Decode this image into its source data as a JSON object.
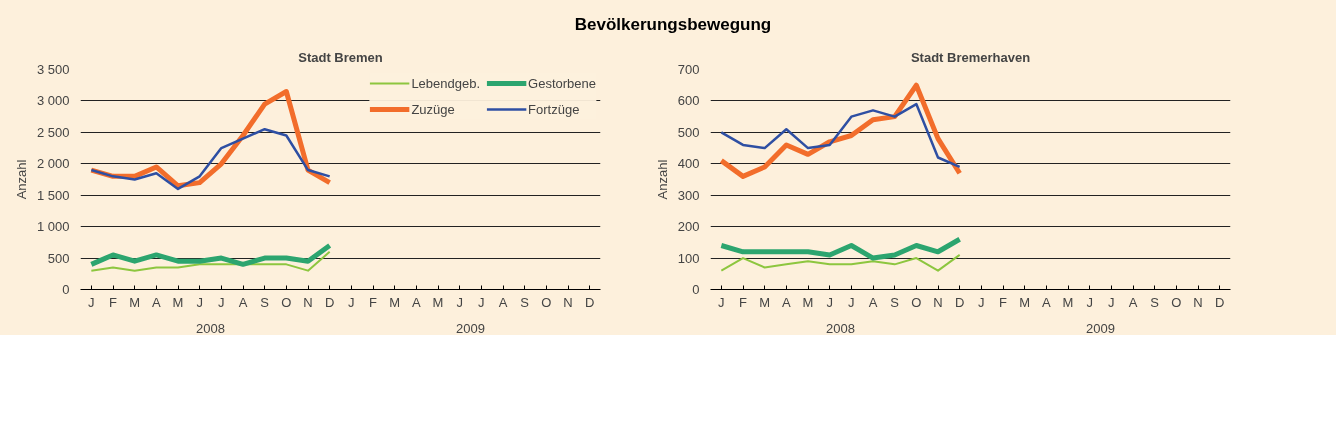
{
  "chart_data": [
    {
      "type": "line",
      "title": "Bevölkerungsbewegung",
      "subtitle": "Stadt Bremen",
      "ylabel": "Anzahl",
      "categories": [
        "J",
        "F",
        "M",
        "A",
        "M",
        "J",
        "J",
        "A",
        "S",
        "O",
        "N",
        "D",
        "J",
        "F",
        "M",
        "A",
        "M",
        "J",
        "J",
        "A",
        "S",
        "O",
        "N",
        "D"
      ],
      "annotations": [
        "2008",
        "2009"
      ],
      "ylim": [
        0,
        3500
      ],
      "yticks": [
        0,
        500,
        {
          "value": 1000,
          "label": "1 000"
        },
        {
          "value": 1500,
          "label": "1 500"
        },
        {
          "value": 2000,
          "label": "2 000"
        },
        {
          "value": 2500,
          "label": "2 500"
        },
        {
          "value": 3000,
          "label": "3 000"
        },
        {
          "value": 3500,
          "label": "3 500"
        }
      ],
      "grid": "y",
      "legend": "top right",
      "marker": "none",
      "series": [
        {
          "name": "Lebendgeb.",
          "color": "#8dc63f",
          "values": [
            300,
            350,
            300,
            350,
            350,
            400,
            400,
            400,
            400,
            400,
            300,
            600,
            null,
            null,
            null,
            null,
            null,
            null,
            null,
            null,
            null,
            null,
            null,
            null
          ]
        },
        {
          "name": "Gestorbene",
          "color": "#2ca56f",
          "values": [
            400,
            550,
            450,
            550,
            450,
            450,
            500,
            400,
            500,
            500,
            450,
            700,
            null,
            null,
            null,
            null,
            null,
            null,
            null,
            null,
            null,
            null,
            null,
            null
          ]
        },
        {
          "name": "Zuzüge",
          "color": "#f26d2b",
          "values": [
            1900,
            1800,
            1800,
            1950,
            1650,
            1700,
            2000,
            2450,
            2950,
            3150,
            1900,
            1700,
            null,
            null,
            null,
            null,
            null,
            null,
            null,
            null,
            null,
            null,
            null,
            null
          ]
        },
        {
          "name": "Fortzüge",
          "color": "#2e4fa3",
          "values": [
            1900,
            1800,
            1750,
            1850,
            1600,
            1800,
            2250,
            2400,
            2550,
            2450,
            1900,
            1800,
            null,
            null,
            null,
            null,
            null,
            null,
            null,
            null,
            null,
            null,
            null,
            null
          ]
        }
      ]
    },
    {
      "type": "line",
      "subtitle": "Stadt Bremerhaven",
      "ylabel": "Anzahl",
      "categories": [
        "J",
        "F",
        "M",
        "A",
        "M",
        "J",
        "J",
        "A",
        "S",
        "O",
        "N",
        "D",
        "J",
        "F",
        "M",
        "A",
        "M",
        "J",
        "J",
        "A",
        "S",
        "O",
        "N",
        "D"
      ],
      "annotations": [
        "2008",
        "2009"
      ],
      "ylim": [
        0,
        700
      ],
      "yticks": [
        0,
        100,
        200,
        300,
        400,
        500,
        600,
        700
      ],
      "grid": "y",
      "marker": "none",
      "series": [
        {
          "color": "#8dc63f",
          "values": [
            60,
            100,
            70,
            80,
            90,
            80,
            80,
            90,
            80,
            100,
            60,
            110,
            null,
            null,
            null,
            null,
            null,
            null,
            null,
            null,
            null,
            null,
            null,
            null
          ]
        },
        {
          "color": "#2ca56f",
          "values": [
            140,
            120,
            120,
            120,
            120,
            110,
            140,
            100,
            110,
            140,
            120,
            160,
            null,
            null,
            null,
            null,
            null,
            null,
            null,
            null,
            null,
            null,
            null,
            null
          ]
        },
        {
          "color": "#f26d2b",
          "values": [
            410,
            360,
            390,
            460,
            430,
            470,
            490,
            540,
            550,
            650,
            480,
            370,
            null,
            null,
            null,
            null,
            null,
            null,
            null,
            null,
            null,
            null,
            null,
            null
          ]
        },
        {
          "color": "#2e4fa3",
          "values": [
            500,
            460,
            450,
            510,
            450,
            460,
            550,
            570,
            550,
            590,
            420,
            390,
            null,
            null,
            null,
            null,
            null,
            null,
            null,
            null,
            null,
            null,
            null,
            null
          ]
        }
      ]
    }
  ]
}
